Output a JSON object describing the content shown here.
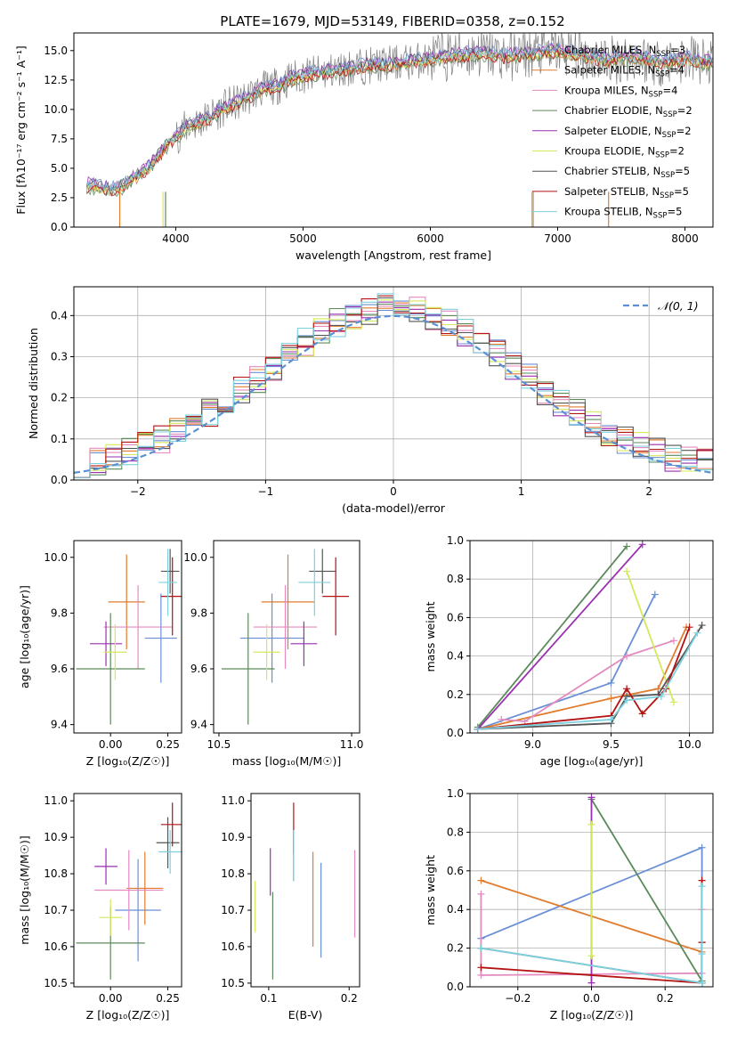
{
  "colors": {
    "Chabrier MILES": "#6a8fd6",
    "Salpeter MILES": "#e07c2e",
    "Kroupa MILES": "#e48abf",
    "Chabrier ELODIE": "#5c8a5c",
    "Salpeter ELODIE": "#9a2fb0",
    "Kroupa ELODIE": "#d4e85a",
    "Chabrier STELIB": "#555555",
    "Salpeter STELIB": "#b31313",
    "Kroupa STELIB": "#7dd0de",
    "gaussian": "#5b8fd6"
  },
  "chart_data": [
    {
      "id": "spectrum",
      "type": "line",
      "title": "PLATE=1679, MJD=53149, FIBERID=0358, z=0.152",
      "xlabel": "wavelength [Angstrom, rest frame]",
      "ylabel": "Flux [fλ10⁻¹⁷ erg cm⁻² s⁻¹ A⁻¹]",
      "xlim": [
        3200,
        8220
      ],
      "ylim": [
        0,
        16.5
      ],
      "xticks": [
        4000,
        5000,
        6000,
        7000,
        8000
      ],
      "yticks": [
        0.0,
        2.5,
        5.0,
        7.5,
        10.0,
        12.5,
        15.0
      ],
      "legend_position": "top-right",
      "data_series": {
        "name": "data",
        "x": [
          3300,
          3400,
          3500,
          3600,
          3700,
          3800,
          3900,
          4000,
          4100,
          4200,
          4300,
          4400,
          4500,
          4600,
          4700,
          4800,
          4900,
          5000,
          5200,
          5400,
          5600,
          5800,
          6000,
          6200,
          6400,
          6600,
          6800,
          7000,
          7200,
          7400,
          7600,
          7800,
          8000,
          8200
        ],
        "y": [
          3.6,
          3.4,
          3.2,
          3.6,
          4.4,
          5.2,
          6.6,
          7.7,
          8.6,
          9.0,
          9.6,
          10.3,
          10.6,
          11.3,
          11.8,
          12.0,
          12.6,
          12.9,
          13.2,
          13.6,
          13.8,
          14.0,
          14.3,
          14.6,
          14.8,
          14.5,
          14.8,
          15.0,
          14.6,
          14.2,
          14.5,
          14.0,
          14.3,
          14.0
        ]
      },
      "series": [
        {
          "name": "Chabrier MILES, N$_{SSP}$=3",
          "label_text": "Chabrier MILES, N",
          "sub": "SSP",
          "tail": "=3"
        },
        {
          "name": "Salpeter MILES, N$_{SSP}$=4",
          "label_text": "Salpeter MILES, N",
          "sub": "SSP",
          "tail": "=4"
        },
        {
          "name": "Kroupa MILES, N$_{SSP}$=4",
          "label_text": "Kroupa MILES, N",
          "sub": "SSP",
          "tail": "=4"
        },
        {
          "name": "Chabrier ELODIE, N$_{SSP}$=2",
          "label_text": "Chabrier ELODIE, N",
          "sub": "SSP",
          "tail": "=2"
        },
        {
          "name": "Salpeter ELODIE, N$_{SSP}$=2",
          "label_text": "Salpeter ELODIE, N",
          "sub": "SSP",
          "tail": "=2"
        },
        {
          "name": "Kroupa ELODIE, N$_{SSP}$=2",
          "label_text": "Kroupa ELODIE, N",
          "sub": "SSP",
          "tail": "=2"
        },
        {
          "name": "Chabrier STELIB, N$_{SSP}$=5",
          "label_text": "Chabrier STELIB, N",
          "sub": "SSP",
          "tail": "=5"
        },
        {
          "name": "Salpeter STELIB, N$_{SSP}$=5",
          "label_text": "Salpeter STELIB, N",
          "sub": "SSP",
          "tail": "=5"
        },
        {
          "name": "Kroupa STELIB, N$_{SSP}$=5",
          "label_text": "Kroupa STELIB, N",
          "sub": "SSP",
          "tail": "=5"
        }
      ]
    },
    {
      "id": "residuals",
      "type": "line",
      "xlabel": "(data-model)/error",
      "ylabel": "Normed distribution",
      "xlim": [
        -2.5,
        2.5
      ],
      "ylim": [
        0.0,
        0.47
      ],
      "xticks": [
        -2,
        -1,
        0,
        1,
        2
      ],
      "yticks": [
        0.0,
        0.1,
        0.2,
        0.3,
        0.4
      ],
      "grid": true,
      "legend": "𝒩(0, 1)",
      "legend_position": "top-right",
      "bins": [
        -2.5,
        -2.375,
        -2.25,
        -2.125,
        -2.0,
        -1.875,
        -1.75,
        -1.625,
        -1.5,
        -1.375,
        -1.25,
        -1.125,
        -1.0,
        -0.875,
        -0.75,
        -0.625,
        -0.5,
        -0.375,
        -0.25,
        -0.125,
        0.0,
        0.125,
        0.25,
        0.375,
        0.5,
        0.625,
        0.75,
        0.875,
        1.0,
        1.125,
        1.25,
        1.375,
        1.5,
        1.625,
        1.75,
        1.875,
        2.0,
        2.125,
        2.25,
        2.375,
        2.5
      ]
    },
    {
      "id": "age_vs_Z",
      "type": "scatter",
      "xlabel": "Z [log₁₀(Z/Z☉)]",
      "ylabel": "age  [log₁₀(age/yr)]",
      "xlim": [
        -0.16,
        0.31
      ],
      "ylim": [
        9.37,
        10.06
      ],
      "xticks": [
        0.0,
        0.25
      ],
      "yticks": [
        9.4,
        9.6,
        9.8,
        10.0
      ],
      "points": [
        {
          "series": "Chabrier MILES",
          "x": 0.22,
          "y": 9.71,
          "xerr": 0.07,
          "yerr": 0.16
        },
        {
          "series": "Salpeter MILES",
          "x": 0.07,
          "y": 9.84,
          "xerr": 0.08,
          "yerr": 0.17
        },
        {
          "series": "Kroupa MILES",
          "x": 0.12,
          "y": 9.75,
          "xerr": 0.15,
          "yerr": 0.15
        },
        {
          "series": "Chabrier ELODIE",
          "x": 0.0,
          "y": 9.6,
          "xerr": 0.15,
          "yerr": 0.2
        },
        {
          "series": "Salpeter ELODIE",
          "x": -0.02,
          "y": 9.69,
          "xerr": 0.07,
          "yerr": 0.08
        },
        {
          "series": "Kroupa ELODIE",
          "x": 0.02,
          "y": 9.66,
          "xerr": 0.05,
          "yerr": 0.1
        },
        {
          "series": "Chabrier STELIB",
          "x": 0.26,
          "y": 9.95,
          "xerr": 0.04,
          "yerr": 0.08
        },
        {
          "series": "Salpeter STELIB",
          "x": 0.27,
          "y": 9.86,
          "xerr": 0.05,
          "yerr": 0.14
        },
        {
          "series": "Kroupa STELIB",
          "x": 0.25,
          "y": 9.91,
          "xerr": 0.04,
          "yerr": 0.12
        }
      ]
    },
    {
      "id": "age_vs_mass",
      "type": "scatter",
      "xlabel": "mass [log₁₀(M/M☉)]",
      "xlim": [
        10.48,
        11.03
      ],
      "ylim": [
        9.37,
        10.06
      ],
      "xticks": [
        10.5,
        11.0
      ],
      "yticks": [
        9.4,
        9.6,
        9.8,
        10.0
      ],
      "points": [
        {
          "series": "Chabrier MILES",
          "x": 10.7,
          "y": 9.71,
          "xerr": 0.12,
          "yerr": 0.16
        },
        {
          "series": "Salpeter MILES",
          "x": 10.76,
          "y": 9.84,
          "xerr": 0.1,
          "yerr": 0.17
        },
        {
          "series": "Kroupa MILES",
          "x": 10.75,
          "y": 9.75,
          "xerr": 0.12,
          "yerr": 0.15
        },
        {
          "series": "Chabrier ELODIE",
          "x": 10.61,
          "y": 9.6,
          "xerr": 0.1,
          "yerr": 0.2
        },
        {
          "series": "Salpeter ELODIE",
          "x": 10.82,
          "y": 9.69,
          "xerr": 0.05,
          "yerr": 0.08
        },
        {
          "series": "Kroupa ELODIE",
          "x": 10.68,
          "y": 9.66,
          "xerr": 0.05,
          "yerr": 0.1
        },
        {
          "series": "Chabrier STELIB",
          "x": 10.89,
          "y": 9.95,
          "xerr": 0.05,
          "yerr": 0.08
        },
        {
          "series": "Salpeter STELIB",
          "x": 10.94,
          "y": 9.86,
          "xerr": 0.05,
          "yerr": 0.14
        },
        {
          "series": "Kroupa STELIB",
          "x": 10.86,
          "y": 9.91,
          "xerr": 0.06,
          "yerr": 0.12
        }
      ]
    },
    {
      "id": "weight_vs_age",
      "type": "line",
      "xlabel": "age  [log₁₀(age/yr)]",
      "ylabel": "mass weight",
      "xlim": [
        8.6,
        10.15
      ],
      "ylim": [
        0.0,
        1.0
      ],
      "xticks": [
        9.0,
        9.5,
        10.0
      ],
      "yticks": [
        0.0,
        0.2,
        0.4,
        0.6,
        0.8,
        1.0
      ],
      "grid": true,
      "series": [
        {
          "name": "Chabrier MILES",
          "x": [
            8.65,
            9.5,
            9.78
          ],
          "y": [
            0.02,
            0.26,
            0.72
          ]
        },
        {
          "name": "Salpeter MILES",
          "x": [
            8.65,
            9.5,
            9.8,
            9.98
          ],
          "y": [
            0.02,
            0.18,
            0.23,
            0.55
          ]
        },
        {
          "name": "Kroupa MILES",
          "x": [
            8.8,
            8.95,
            9.6,
            9.9
          ],
          "y": [
            0.07,
            0.06,
            0.4,
            0.48
          ]
        },
        {
          "name": "Chabrier ELODIE",
          "x": [
            8.65,
            9.6
          ],
          "y": [
            0.03,
            0.97
          ]
        },
        {
          "name": "Salpeter ELODIE",
          "x": [
            8.65,
            9.7
          ],
          "y": [
            0.02,
            0.98
          ]
        },
        {
          "name": "Kroupa ELODIE",
          "x": [
            9.6,
            9.9
          ],
          "y": [
            0.84,
            0.16
          ]
        },
        {
          "name": "Chabrier STELIB",
          "x": [
            8.65,
            9.5,
            9.6,
            9.8,
            10.08
          ],
          "y": [
            0.02,
            0.05,
            0.19,
            0.2,
            0.56
          ]
        },
        {
          "name": "Salpeter STELIB",
          "x": [
            8.65,
            9.5,
            9.6,
            9.7,
            9.85,
            10.0
          ],
          "y": [
            0.02,
            0.09,
            0.23,
            0.1,
            0.23,
            0.55
          ]
        },
        {
          "name": "Kroupa STELIB",
          "x": [
            8.65,
            9.5,
            9.6,
            9.82,
            10.05
          ],
          "y": [
            0.02,
            0.07,
            0.17,
            0.19,
            0.52
          ]
        }
      ]
    },
    {
      "id": "mass_vs_Z",
      "type": "scatter",
      "xlabel": "Z [log₁₀(Z/Z☉)]",
      "ylabel": "mass [log₁₀(M/M☉)]",
      "xlim": [
        -0.16,
        0.31
      ],
      "ylim": [
        10.49,
        11.02
      ],
      "xticks": [
        0.0,
        0.25
      ],
      "yticks": [
        10.5,
        10.6,
        10.7,
        10.8,
        10.9,
        11.0
      ],
      "points": [
        {
          "series": "Chabrier MILES",
          "x": 0.12,
          "y": 10.7,
          "xerr": 0.1,
          "yerr": 0.14
        },
        {
          "series": "Salpeter MILES",
          "x": 0.15,
          "y": 10.76,
          "xerr": 0.08,
          "yerr": 0.1
        },
        {
          "series": "Kroupa MILES",
          "x": 0.08,
          "y": 10.755,
          "xerr": 0.15,
          "yerr": 0.11
        },
        {
          "series": "Chabrier ELODIE",
          "x": 0.0,
          "y": 10.61,
          "xerr": 0.15,
          "yerr": 0.1
        },
        {
          "series": "Salpeter ELODIE",
          "x": -0.02,
          "y": 10.82,
          "xerr": 0.05,
          "yerr": 0.05
        },
        {
          "series": "Kroupa ELODIE",
          "x": 0.0,
          "y": 10.68,
          "xerr": 0.05,
          "yerr": 0.05
        },
        {
          "series": "Chabrier STELIB",
          "x": 0.25,
          "y": 10.885,
          "xerr": 0.05,
          "yerr": 0.07
        },
        {
          "series": "Salpeter STELIB",
          "x": 0.27,
          "y": 10.935,
          "xerr": 0.05,
          "yerr": 0.06
        },
        {
          "series": "Kroupa STELIB",
          "x": 0.26,
          "y": 10.86,
          "xerr": 0.05,
          "yerr": 0.06
        }
      ]
    },
    {
      "id": "mass_vs_ebv",
      "type": "scatter",
      "xlabel": "E(B-V)",
      "xlim": [
        0.078,
        0.213
      ],
      "ylim": [
        10.49,
        11.02
      ],
      "xticks": [
        0.1,
        0.2
      ],
      "yticks": [
        10.5,
        10.6,
        10.7,
        10.8,
        10.9,
        11.0
      ],
      "points": [
        {
          "series": "Chabrier MILES",
          "x": 0.165,
          "y": 10.7,
          "yerr": 0.13
        },
        {
          "series": "Salpeter MILES",
          "x": 0.155,
          "y": 10.73,
          "yerr": 0.13
        },
        {
          "series": "Kroupa MILES",
          "x": 0.207,
          "y": 10.745,
          "yerr": 0.12
        },
        {
          "series": "Chabrier ELODIE",
          "x": 0.105,
          "y": 10.63,
          "yerr": 0.12
        },
        {
          "series": "Salpeter ELODIE",
          "x": 0.102,
          "y": 10.805,
          "yerr": 0.065
        },
        {
          "series": "Kroupa ELODIE",
          "x": 0.083,
          "y": 10.71,
          "yerr": 0.07
        },
        {
          "series": "Chabrier STELIB",
          "x": 0.131,
          "y": 10.85,
          "yerr": 0.07
        },
        {
          "series": "Salpeter STELIB",
          "x": 0.131,
          "y": 10.925,
          "yerr": 0.07
        },
        {
          "series": "Kroupa STELIB",
          "x": 0.131,
          "y": 10.85,
          "yerr": 0.07
        }
      ]
    },
    {
      "id": "weight_vs_Z",
      "type": "line",
      "xlabel": "Z [log₁₀(Z/Z☉)]",
      "ylabel": "mass weight",
      "xlim": [
        -0.33,
        0.33
      ],
      "ylim": [
        0.0,
        1.0
      ],
      "xticks": [
        -0.2,
        0.0,
        0.2
      ],
      "yticks": [
        0.0,
        0.2,
        0.4,
        0.6,
        0.8,
        1.0
      ],
      "grid": true,
      "series": [
        {
          "name": "Chabrier MILES",
          "x": [
            -0.3,
            0.3,
            0.3
          ],
          "y": [
            0.25,
            0.72,
            0.02
          ]
        },
        {
          "name": "Salpeter MILES",
          "x": [
            -0.3,
            0.3,
            0.3
          ],
          "y": [
            0.55,
            0.18,
            0.02
          ]
        },
        {
          "name": "Kroupa MILES",
          "x": [
            -0.3,
            -0.3,
            0.3,
            0.3
          ],
          "y": [
            0.48,
            0.06,
            0.07,
            0.4
          ]
        },
        {
          "name": "Chabrier ELODIE",
          "x": [
            0.0,
            0.3
          ],
          "y": [
            0.97,
            0.03
          ]
        },
        {
          "name": "Salpeter ELODIE",
          "x": [
            0.0,
            0.0
          ],
          "y": [
            0.98,
            0.02
          ]
        },
        {
          "name": "Kroupa ELODIE",
          "x": [
            0.0,
            0.0
          ],
          "y": [
            0.84,
            0.16
          ]
        },
        {
          "name": "Chabrier STELIB",
          "x": [
            -0.3,
            0.3,
            0.3
          ],
          "y": [
            0.2,
            0.02,
            0.23
          ]
        },
        {
          "name": "Salpeter STELIB",
          "x": [
            -0.3,
            0.3,
            0.3,
            0.3
          ],
          "y": [
            0.1,
            0.02,
            0.23,
            0.55
          ]
        },
        {
          "name": "Kroupa STELIB",
          "x": [
            -0.3,
            0.3,
            0.3,
            0.3
          ],
          "y": [
            0.2,
            0.02,
            0.17,
            0.52
          ]
        }
      ]
    }
  ]
}
